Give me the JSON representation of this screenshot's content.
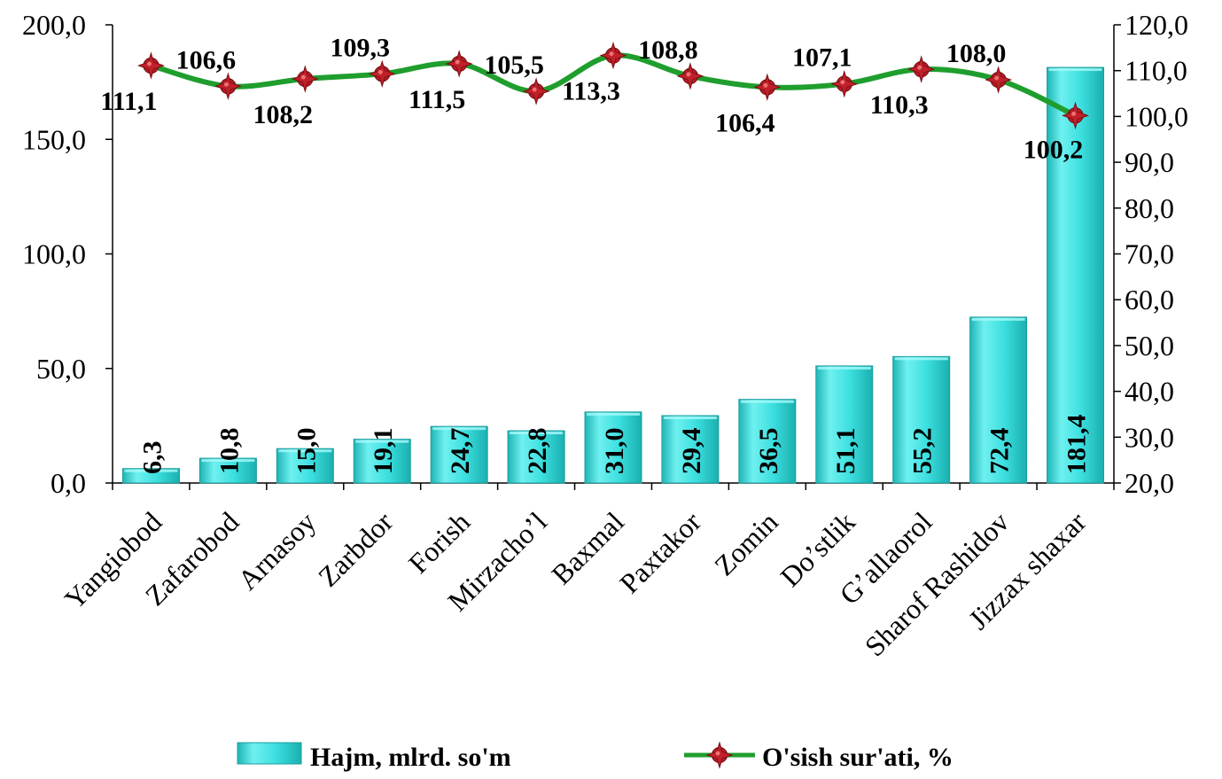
{
  "chart_data": {
    "type": "bar",
    "categories": [
      "Yangiobod",
      "Zafarobod",
      "Arnasoy",
      "Zarbdor",
      "Forish",
      "Mirzacho’l",
      "Baxmal",
      "Paxtakor",
      "Zomin",
      "Do’stlik",
      "G’allaorol",
      "Sharof Rashidov",
      "Jizzax shaxar"
    ],
    "series": [
      {
        "name": "Hajm, mlrd. so'm",
        "type": "bar",
        "axis": "left",
        "values": [
          6.3,
          10.8,
          15.0,
          19.1,
          24.7,
          22.8,
          31.0,
          29.4,
          36.5,
          51.1,
          55.2,
          72.4,
          181.4
        ],
        "labels": [
          "6,3",
          "10,8",
          "15,0",
          "19,1",
          "24,7",
          "22,8",
          "31,0",
          "29,4",
          "36,5",
          "51,1",
          "55,2",
          "72,4",
          "181,4"
        ],
        "color": "#33D6D6"
      },
      {
        "name": "O'sish sur'ati, %",
        "type": "line",
        "axis": "right",
        "values": [
          111.1,
          106.6,
          108.2,
          109.3,
          111.5,
          105.5,
          113.3,
          108.8,
          106.4,
          107.1,
          110.3,
          108.0,
          100.2
        ],
        "labels": [
          "111,1",
          "106,6",
          "108,2",
          "109,3",
          "111,5",
          "105,5",
          "113,3",
          "108,8",
          "106,4",
          "107,1",
          "110,3",
          "108,0",
          "100,2"
        ],
        "line_color": "#1F9E2E",
        "marker_color": "#C0202A"
      }
    ],
    "y_left": {
      "ylim": [
        0,
        200
      ],
      "ticks": [
        "0,0",
        "50,0",
        "100,0",
        "150,0",
        "200,0"
      ]
    },
    "y_right": {
      "ylim": [
        20,
        120
      ],
      "ticks": [
        "20,0",
        "30,0",
        "40,0",
        "50,0",
        "60,0",
        "70,0",
        "80,0",
        "90,0",
        "100,0",
        "110,0",
        "120,0"
      ]
    },
    "legend_position": "bottom",
    "grid": false
  }
}
